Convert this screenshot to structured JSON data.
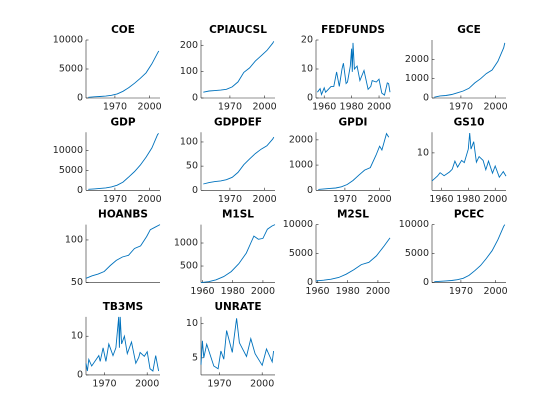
{
  "chart_data": [
    {
      "type": "line",
      "title": "COE",
      "color": "#0072bd",
      "xlim": [
        1945,
        2009
      ],
      "xticks": [
        1970,
        2000
      ],
      "ylim": [
        0,
        10000
      ],
      "yticks": [
        0,
        5000,
        10000
      ],
      "x": [
        1947,
        1952,
        1957,
        1962,
        1967,
        1972,
        1977,
        1982,
        1987,
        1992,
        1997,
        2002,
        2007,
        2008
      ],
      "values": [
        120,
        200,
        260,
        320,
        470,
        700,
        1150,
        1800,
        2550,
        3400,
        4350,
        5900,
        7800,
        8100
      ]
    },
    {
      "type": "line",
      "title": "CPIAUCSL",
      "color": "#0072bd",
      "xlim": [
        1945,
        2009
      ],
      "xticks": [
        1970,
        2000
      ],
      "ylim": [
        0,
        220
      ],
      "yticks": [
        0,
        100,
        200
      ],
      "x": [
        1947,
        1952,
        1957,
        1962,
        1967,
        1972,
        1977,
        1982,
        1987,
        1992,
        1997,
        2002,
        2007,
        2008
      ],
      "values": [
        22,
        26.5,
        28,
        30,
        33,
        42,
        61,
        97,
        114,
        140,
        160,
        180,
        208,
        215
      ]
    },
    {
      "type": "line",
      "title": "FEDFUNDS",
      "color": "#0072bd",
      "xlim": [
        1954,
        2008
      ],
      "xticks": [
        1960,
        1980,
        2000
      ],
      "ylim": [
        0,
        20
      ],
      "yticks": [
        0,
        10,
        20
      ],
      "x": [
        1955,
        1957,
        1958,
        1960,
        1961,
        1965,
        1967,
        1969,
        1971,
        1973,
        1974,
        1976,
        1977,
        1979,
        1980,
        1980.5,
        1981,
        1982,
        1984,
        1986,
        1989,
        1992,
        1994,
        1995,
        1998,
        2000,
        2002,
        2004,
        2006,
        2007,
        2008
      ],
      "values": [
        2,
        3.2,
        1.2,
        3.5,
        2,
        4,
        4,
        9,
        4,
        10,
        12,
        5,
        5.5,
        11,
        17,
        9,
        19,
        10,
        11,
        6,
        9.5,
        3,
        4,
        6,
        5.5,
        6.5,
        1.7,
        1,
        5.2,
        5,
        2
      ]
    },
    {
      "type": "line",
      "title": "GCE",
      "color": "#0072bd",
      "xlim": [
        1945,
        2009
      ],
      "xticks": [
        1970,
        2000
      ],
      "ylim": [
        0,
        3000
      ],
      "yticks": [
        0,
        1000,
        2000
      ],
      "x": [
        1947,
        1952,
        1957,
        1962,
        1967,
        1972,
        1977,
        1982,
        1987,
        1992,
        1997,
        2002,
        2007,
        2008
      ],
      "values": [
        40,
        110,
        130,
        180,
        270,
        360,
        500,
        780,
        1000,
        1260,
        1450,
        1900,
        2600,
        2850
      ]
    },
    {
      "type": "line",
      "title": "GDP",
      "color": "#0072bd",
      "xlim": [
        1945,
        2009
      ],
      "xticks": [
        1970,
        2000
      ],
      "ylim": [
        0,
        14500
      ],
      "yticks": [
        0,
        5000,
        10000
      ],
      "x": [
        1947,
        1952,
        1957,
        1962,
        1967,
        1972,
        1977,
        1982,
        1987,
        1992,
        1997,
        2002,
        2007,
        2008
      ],
      "values": [
        240,
        360,
        470,
        590,
        860,
        1280,
        2050,
        3350,
        4700,
        6300,
        8300,
        10600,
        14000,
        14200
      ]
    },
    {
      "type": "line",
      "title": "GDPDEF",
      "color": "#0072bd",
      "xlim": [
        1945,
        2009
      ],
      "xticks": [
        1970,
        2000
      ],
      "ylim": [
        0,
        120
      ],
      "yticks": [
        0,
        50,
        100
      ],
      "x": [
        1947,
        1952,
        1957,
        1962,
        1967,
        1972,
        1977,
        1982,
        1987,
        1992,
        1997,
        2002,
        2007,
        2008
      ],
      "values": [
        13,
        16,
        18,
        19.5,
        22,
        27,
        37,
        53,
        65,
        76,
        85,
        92,
        106,
        110
      ]
    },
    {
      "type": "line",
      "title": "GPDI",
      "color": "#0072bd",
      "xlim": [
        1945,
        2009
      ],
      "xticks": [
        1970,
        2000
      ],
      "ylim": [
        0,
        2300
      ],
      "yticks": [
        0,
        1000,
        2000
      ],
      "x": [
        1947,
        1952,
        1957,
        1962,
        1967,
        1972,
        1977,
        1982,
        1987,
        1992,
        1997,
        2000,
        2002,
        2006,
        2008
      ],
      "values": [
        35,
        55,
        75,
        90,
        140,
        230,
        390,
        600,
        800,
        900,
        1400,
        1750,
        1600,
        2250,
        2100
      ]
    },
    {
      "type": "line",
      "title": "GS10",
      "color": "#0072bd",
      "xlim": [
        1953,
        2008
      ],
      "xticks": [
        1960,
        1980,
        2000
      ],
      "ylim": [
        0,
        15.5
      ],
      "yticks": [
        10
      ],
      "x": [
        1953,
        1957,
        1959,
        1962,
        1966,
        1968,
        1970,
        1972,
        1975,
        1977,
        1980,
        1981,
        1982,
        1984,
        1986,
        1988,
        1991,
        1993,
        1995,
        1998,
        2000,
        2003,
        2006,
        2008
      ],
      "values": [
        2.5,
        3.8,
        4.7,
        3.9,
        4.9,
        5.6,
        7.8,
        6.2,
        8,
        7.4,
        11,
        15.3,
        11,
        13,
        7.5,
        9,
        8,
        5.5,
        7.8,
        4.6,
        6.5,
        3.5,
        5,
        3.8
      ]
    },
    {
      "type": "line",
      "title": "HOANBS",
      "color": "#0072bd",
      "xlim": [
        1947,
        2008
      ],
      "ylim": [
        50,
        118
      ],
      "yticks": [
        50,
        100
      ],
      "x": [
        1947,
        1952,
        1957,
        1962,
        1967,
        1972,
        1977,
        1982,
        1987,
        1992,
        1997,
        2000,
        2004,
        2008
      ],
      "values": [
        55,
        58,
        60,
        63,
        70,
        76,
        80,
        82,
        90,
        93,
        104,
        112,
        115,
        118
      ]
    },
    {
      "type": "line",
      "title": "M1SL",
      "color": "#0072bd",
      "xlim": [
        1959,
        2008
      ],
      "xticks": [
        1960,
        1980,
        2000
      ],
      "ylim": [
        140,
        1400
      ],
      "yticks": [
        500,
        1000
      ],
      "x": [
        1959,
        1964,
        1969,
        1974,
        1979,
        1984,
        1989,
        1992,
        1994,
        1997,
        2000,
        2003,
        2006,
        2008
      ],
      "values": [
        140,
        160,
        200,
        270,
        380,
        550,
        780,
        1000,
        1150,
        1080,
        1100,
        1300,
        1370,
        1400
      ]
    },
    {
      "type": "line",
      "title": "M2SL",
      "color": "#0072bd",
      "xlim": [
        1959,
        2008
      ],
      "xticks": [
        1960,
        1980,
        2000
      ],
      "ylim": [
        0,
        10000
      ],
      "yticks": [
        0,
        5000,
        10000
      ],
      "x": [
        1959,
        1964,
        1969,
        1974,
        1979,
        1984,
        1989,
        1994,
        1999,
        2004,
        2008
      ],
      "values": [
        290,
        420,
        590,
        880,
        1450,
        2200,
        3100,
        3500,
        4600,
        6300,
        7700
      ]
    },
    {
      "type": "line",
      "title": "PCEC",
      "color": "#0072bd",
      "xlim": [
        1945,
        2009
      ],
      "xticks": [
        1970,
        2000
      ],
      "ylim": [
        0,
        10000
      ],
      "yticks": [
        0,
        5000,
        10000
      ],
      "x": [
        1947,
        1952,
        1957,
        1962,
        1967,
        1972,
        1977,
        1982,
        1987,
        1992,
        1997,
        2002,
        2007,
        2008
      ],
      "values": [
        160,
        220,
        290,
        370,
        500,
        750,
        1250,
        2050,
        2950,
        4150,
        5500,
        7400,
        9700,
        10000
      ]
    },
    {
      "type": "line",
      "title": "TB3MS",
      "color": "#0072bd",
      "xlim": [
        1957,
        2009
      ],
      "xticks": [
        1970,
        2000
      ],
      "ylim": [
        0,
        15
      ],
      "yticks": [
        0,
        10
      ],
      "x": [
        1957,
        1958,
        1959,
        1961,
        1966,
        1967,
        1969,
        1971,
        1973,
        1974,
        1976,
        1978,
        1980,
        1980.5,
        1981,
        1982,
        1984,
        1986,
        1989,
        1992,
        1994,
        1995,
        1998,
        2000,
        2002,
        2004,
        2006,
        2008
      ],
      "values": [
        3,
        1,
        4,
        2.3,
        5,
        3.5,
        7,
        3.5,
        8,
        7,
        5,
        7,
        15,
        7,
        15,
        8,
        10,
        5.5,
        8.5,
        3,
        4.5,
        5.8,
        4.8,
        6,
        1.6,
        1,
        5,
        1
      ]
    },
    {
      "type": "line",
      "title": "UNRATE",
      "color": "#0072bd",
      "xlim": [
        1957,
        2009
      ],
      "xticks": [
        1970,
        2000
      ],
      "ylim": [
        2.5,
        11
      ],
      "yticks": [
        5,
        10
      ],
      "x": [
        1957,
        1958,
        1959,
        1961,
        1966,
        1969,
        1971,
        1973,
        1975,
        1979,
        1980,
        1982,
        1984,
        1989,
        1992,
        1995,
        2000,
        2003,
        2007,
        2008
      ],
      "values": [
        4,
        7.5,
        5,
        7,
        3.8,
        3.4,
        6,
        4.8,
        9,
        5.8,
        7.5,
        10.8,
        7.2,
        5.2,
        7.8,
        5.6,
        3.9,
        6.3,
        4.4,
        6
      ]
    }
  ]
}
